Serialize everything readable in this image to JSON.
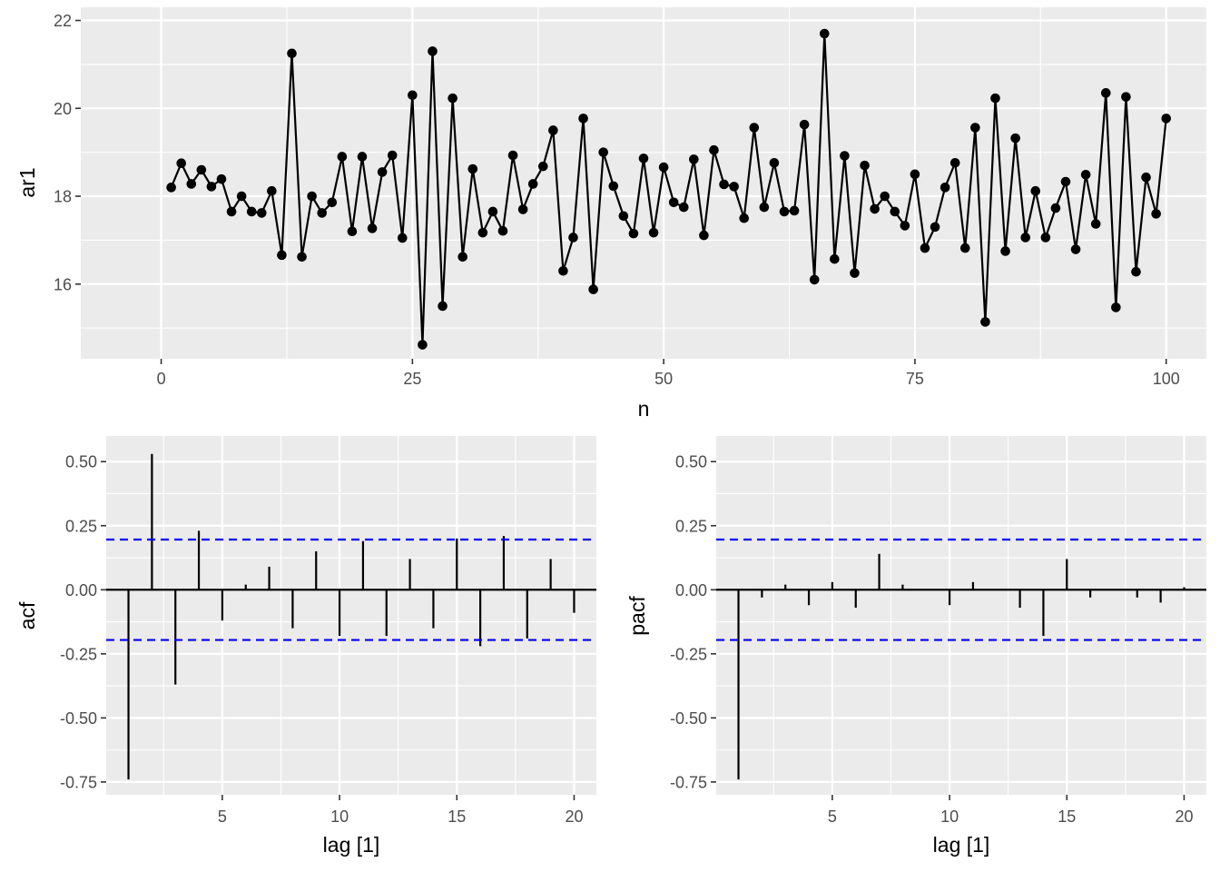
{
  "chart_data": [
    {
      "id": "series",
      "type": "line",
      "xlabel": "n",
      "ylabel": "ar1",
      "xlim": [
        -8,
        104
      ],
      "ylim": [
        14.3,
        22.3
      ],
      "x_ticks": [
        0,
        25,
        50,
        75,
        100
      ],
      "y_ticks": [
        16,
        18,
        20,
        22
      ],
      "grid": true,
      "markers": true,
      "color": "#000000",
      "x": [
        1,
        2,
        3,
        4,
        5,
        6,
        7,
        8,
        9,
        10,
        11,
        12,
        13,
        14,
        15,
        16,
        17,
        18,
        19,
        20,
        21,
        22,
        23,
        24,
        25,
        26,
        27,
        28,
        29,
        30,
        31,
        32,
        33,
        34,
        35,
        36,
        37,
        38,
        39,
        40,
        41,
        42,
        43,
        44,
        45,
        46,
        47,
        48,
        49,
        50,
        51,
        52,
        53,
        54,
        55,
        56,
        57,
        58,
        59,
        60,
        61,
        62,
        63,
        64,
        65,
        66,
        67,
        68,
        69,
        70,
        71,
        72,
        73,
        74,
        75,
        76,
        77,
        78,
        79,
        80,
        81,
        82,
        83,
        84,
        85,
        86,
        87,
        88,
        89,
        90,
        91,
        92,
        93,
        94,
        95,
        96,
        97,
        98,
        99,
        100
      ],
      "y": [
        18.2,
        18.75,
        18.28,
        18.6,
        18.22,
        18.39,
        17.65,
        18.0,
        17.65,
        17.62,
        18.12,
        16.66,
        21.25,
        16.62,
        18.0,
        17.62,
        17.86,
        18.9,
        17.2,
        18.9,
        17.27,
        18.55,
        18.93,
        17.05,
        20.3,
        14.62,
        21.3,
        15.5,
        20.23,
        16.62,
        18.62,
        17.17,
        17.65,
        17.21,
        18.93,
        17.7,
        18.28,
        18.68,
        19.5,
        16.3,
        17.06,
        19.77,
        15.88,
        19.0,
        18.23,
        17.55,
        17.15,
        18.86,
        17.17,
        18.66,
        17.86,
        17.75,
        18.84,
        17.11,
        19.05,
        18.27,
        18.22,
        17.5,
        19.56,
        17.75,
        18.76,
        17.65,
        17.67,
        19.63,
        16.1,
        21.7,
        16.57,
        18.92,
        16.25,
        18.7,
        17.71,
        18.0,
        17.65,
        17.33,
        18.5,
        16.82,
        17.3,
        18.2,
        18.76,
        16.82,
        19.56,
        15.14,
        20.23,
        16.75,
        19.32,
        17.06,
        18.12,
        17.06,
        17.73,
        18.33,
        16.79,
        18.49,
        17.37,
        20.35,
        15.47,
        20.26,
        16.28,
        18.43,
        17.6,
        19.77
      ]
    },
    {
      "id": "acf",
      "type": "bar",
      "xlabel": "lag [1]",
      "ylabel": "acf",
      "xlim": [
        0.05,
        20.95
      ],
      "ylim": [
        -0.8,
        0.6
      ],
      "x_ticks": [
        5,
        10,
        15,
        20
      ],
      "y_ticks": [
        "-0.75",
        "-0.50",
        "-0.25",
        "0.00",
        "0.25",
        "0.50"
      ],
      "grid": true,
      "confidence_band": 0.196,
      "band_color": "#0000ff",
      "color": "#000000",
      "lags": [
        1,
        2,
        3,
        4,
        5,
        6,
        7,
        8,
        9,
        10,
        11,
        12,
        13,
        14,
        15,
        16,
        17,
        18,
        19,
        20
      ],
      "values": [
        -0.74,
        0.53,
        -0.37,
        0.23,
        -0.12,
        0.02,
        0.09,
        -0.15,
        0.15,
        -0.18,
        0.19,
        -0.18,
        0.12,
        -0.15,
        0.2,
        -0.22,
        0.21,
        -0.19,
        0.12,
        -0.09
      ]
    },
    {
      "id": "pacf",
      "type": "bar",
      "xlabel": "lag [1]",
      "ylabel": "pacf",
      "xlim": [
        0.05,
        20.95
      ],
      "ylim": [
        -0.8,
        0.6
      ],
      "x_ticks": [
        5,
        10,
        15,
        20
      ],
      "y_ticks": [
        "-0.75",
        "-0.50",
        "-0.25",
        "0.00",
        "0.25",
        "0.50"
      ],
      "grid": true,
      "confidence_band": 0.196,
      "band_color": "#0000ff",
      "color": "#000000",
      "lags": [
        1,
        2,
        3,
        4,
        5,
        6,
        7,
        8,
        9,
        10,
        11,
        12,
        13,
        14,
        15,
        16,
        17,
        18,
        19,
        20
      ],
      "values": [
        -0.74,
        -0.03,
        0.02,
        -0.06,
        0.03,
        -0.07,
        0.14,
        0.02,
        0.0,
        -0.06,
        0.03,
        0.0,
        -0.07,
        -0.18,
        0.12,
        -0.03,
        0.0,
        -0.03,
        -0.05,
        0.01
      ]
    }
  ]
}
